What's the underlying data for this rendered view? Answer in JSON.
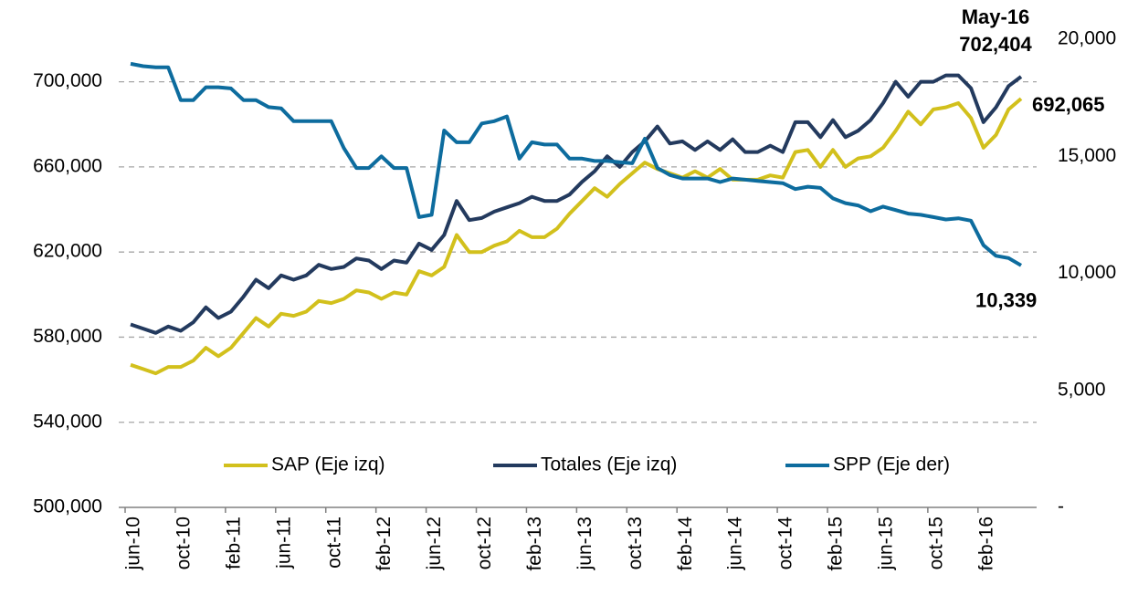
{
  "chart_data": {
    "type": "line",
    "annotations": [
      "May-16"
    ],
    "categories": [
      "jun-10",
      null,
      null,
      null,
      "oct-10",
      null,
      null,
      null,
      "feb-11",
      null,
      null,
      null,
      "jun-11",
      null,
      null,
      null,
      "oct-11",
      null,
      null,
      null,
      "feb-12",
      null,
      null,
      null,
      "jun-12",
      null,
      null,
      null,
      "oct-12",
      null,
      null,
      null,
      "feb-13",
      null,
      null,
      null,
      "jun-13",
      null,
      null,
      null,
      "oct-13",
      null,
      null,
      null,
      "feb-14",
      null,
      null,
      null,
      "jun-14",
      null,
      null,
      null,
      "oct-14",
      null,
      null,
      null,
      "feb-15",
      null,
      null,
      null,
      "jun-15",
      null,
      null,
      null,
      "oct-15",
      null,
      null,
      null,
      "feb-16",
      null,
      null,
      null
    ],
    "series": [
      {
        "name": "SAP (Eje izq)",
        "color": "#d2c01c",
        "axis": "y",
        "values": [
          567000,
          565000,
          563000,
          566000,
          566000,
          569000,
          575000,
          571000,
          575000,
          582000,
          589000,
          585000,
          591000,
          590000,
          592000,
          597000,
          596000,
          598000,
          602000,
          601000,
          598000,
          601000,
          600000,
          611000,
          609000,
          613000,
          628000,
          620000,
          620000,
          623000,
          625000,
          630000,
          627000,
          627000,
          631000,
          638000,
          644000,
          650000,
          646000,
          652000,
          657000,
          662000,
          659000,
          657000,
          655000,
          658000,
          655000,
          659000,
          654000,
          654000,
          654000,
          656000,
          655000,
          667000,
          668000,
          660000,
          668000,
          660000,
          664000,
          665000,
          669000,
          677000,
          686000,
          680000,
          687000,
          688000,
          690000,
          683000,
          669000,
          675000,
          687000,
          692065
        ],
        "value_labels": [
          null,
          null,
          null,
          null,
          null,
          null,
          null,
          null,
          null,
          null,
          null,
          null,
          null,
          null,
          null,
          null,
          null,
          null,
          null,
          null,
          null,
          null,
          null,
          null,
          null,
          null,
          null,
          null,
          null,
          null,
          null,
          null,
          null,
          null,
          null,
          null,
          null,
          null,
          null,
          null,
          null,
          null,
          null,
          null,
          null,
          null,
          null,
          null,
          null,
          null,
          null,
          null,
          null,
          null,
          null,
          null,
          null,
          null,
          null,
          null,
          null,
          null,
          null,
          null,
          null,
          null,
          null,
          null,
          null,
          null,
          null,
          "692,065"
        ]
      },
      {
        "name": "Totales (Eje izq)",
        "color": "#233a5e",
        "axis": "y",
        "values": [
          586000,
          584000,
          582000,
          585000,
          583000,
          587000,
          594000,
          589000,
          592000,
          599000,
          607000,
          603000,
          609000,
          607000,
          609000,
          614000,
          612000,
          613000,
          617000,
          616000,
          612000,
          616000,
          615000,
          624000,
          621000,
          628000,
          644000,
          635000,
          636000,
          639000,
          641000,
          643000,
          646000,
          644000,
          644000,
          647000,
          653000,
          658000,
          665000,
          660000,
          667000,
          672000,
          679000,
          671000,
          672000,
          668000,
          672000,
          668000,
          673000,
          667000,
          667000,
          670000,
          667000,
          681000,
          681000,
          674000,
          682000,
          674000,
          677000,
          682000,
          690000,
          700000,
          693000,
          700000,
          700000,
          703000,
          703000,
          697000,
          681000,
          688000,
          698000,
          702404
        ],
        "value_labels": [
          null,
          null,
          null,
          null,
          null,
          null,
          null,
          null,
          null,
          null,
          null,
          null,
          null,
          null,
          null,
          null,
          null,
          null,
          null,
          null,
          null,
          null,
          null,
          null,
          null,
          null,
          null,
          null,
          null,
          null,
          null,
          null,
          null,
          null,
          null,
          null,
          null,
          null,
          null,
          null,
          null,
          null,
          null,
          null,
          null,
          null,
          null,
          null,
          null,
          null,
          null,
          null,
          null,
          null,
          null,
          null,
          null,
          null,
          null,
          null,
          null,
          null,
          null,
          null,
          null,
          null,
          null,
          null,
          null,
          null,
          null,
          "702,404"
        ]
      },
      {
        "name": "SPP (Eje der)",
        "color": "#0d6c9e",
        "axis": "y2",
        "values": [
          18950,
          18850,
          18800,
          18800,
          17400,
          17400,
          17950,
          17950,
          17900,
          17400,
          17400,
          17100,
          17050,
          16500,
          16500,
          16500,
          16500,
          15350,
          14500,
          14500,
          15000,
          14500,
          14500,
          12400,
          12500,
          16100,
          15600,
          15600,
          16400,
          16500,
          16700,
          14900,
          15600,
          15500,
          15500,
          14900,
          14900,
          14800,
          14800,
          14750,
          14700,
          15750,
          14500,
          14200,
          14050,
          14050,
          14050,
          13900,
          14050,
          14000,
          13950,
          13900,
          13850,
          13600,
          13700,
          13650,
          13200,
          13000,
          12900,
          12650,
          12850,
          12700,
          12550,
          12500,
          12400,
          12300,
          12350,
          12250,
          11200,
          10750,
          10650,
          10339
        ],
        "value_labels": [
          null,
          null,
          null,
          null,
          null,
          null,
          null,
          null,
          null,
          null,
          null,
          null,
          null,
          null,
          null,
          null,
          null,
          null,
          null,
          null,
          null,
          null,
          null,
          null,
          null,
          null,
          null,
          null,
          null,
          null,
          null,
          null,
          null,
          null,
          null,
          null,
          null,
          null,
          null,
          null,
          null,
          null,
          null,
          null,
          null,
          null,
          null,
          null,
          null,
          null,
          null,
          null,
          null,
          null,
          null,
          null,
          null,
          null,
          null,
          null,
          null,
          null,
          null,
          null,
          null,
          null,
          null,
          null,
          null,
          null,
          null,
          "10,339"
        ]
      }
    ],
    "ylim": [
      500000,
      720000
    ],
    "yticks": [
      {
        "value": 500000,
        "label": "500,000"
      },
      {
        "value": 540000,
        "label": "540,000"
      },
      {
        "value": 580000,
        "label": "580,000"
      },
      {
        "value": 620000,
        "label": "620,000"
      },
      {
        "value": 660000,
        "label": "660,000"
      },
      {
        "value": 700000,
        "label": "700,000"
      }
    ],
    "y2lim": [
      0,
      20000
    ],
    "y2ticks": [
      {
        "value": 0,
        "label": "-"
      },
      {
        "value": 5000,
        "label": "5,000"
      },
      {
        "value": 10000,
        "label": "10,000"
      },
      {
        "value": 15000,
        "label": "15,000"
      },
      {
        "value": 20000,
        "label": "20,000"
      }
    ],
    "grid": true,
    "legend": "bottom"
  }
}
